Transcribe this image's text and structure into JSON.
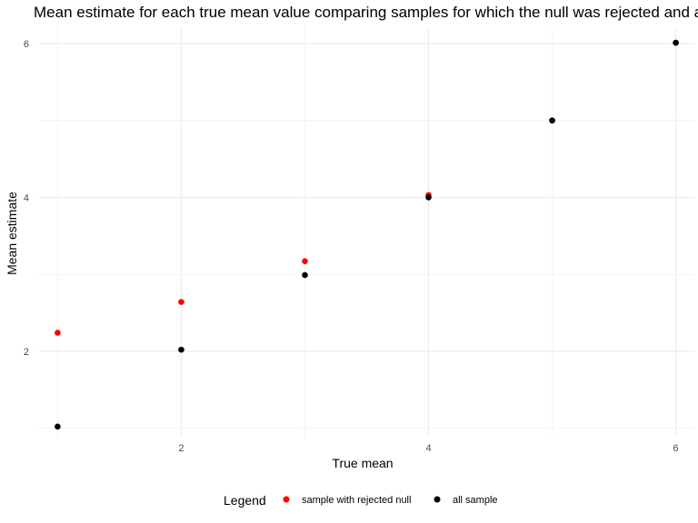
{
  "chart_data": {
    "type": "scatter",
    "title": "Mean estimate for each true mean value comparing samples for which the null was rejected and all samples",
    "xlabel": "True mean",
    "ylabel": "Mean estimate",
    "xlim": [
      0.85,
      6.15
    ],
    "ylim": [
      0.9,
      6.2
    ],
    "x_ticks": [
      2,
      4,
      6
    ],
    "y_ticks": [
      2,
      4,
      6
    ],
    "x_minor": [
      1,
      3,
      5
    ],
    "y_minor": [
      1,
      3,
      5
    ],
    "grid": true,
    "legend": {
      "title": "Legend",
      "position": "bottom"
    },
    "series": [
      {
        "name": "sample with rejected null",
        "color": "#ff0000",
        "points": [
          {
            "x": 1,
            "y": 2.24
          },
          {
            "x": 2,
            "y": 2.64
          },
          {
            "x": 3,
            "y": 3.17
          },
          {
            "x": 4,
            "y": 4.03
          },
          {
            "x": 5,
            "y": 5.0
          },
          {
            "x": 6,
            "y": 6.01
          }
        ]
      },
      {
        "name": "all sample",
        "color": "#000000",
        "points": [
          {
            "x": 1,
            "y": 1.02
          },
          {
            "x": 2,
            "y": 2.02
          },
          {
            "x": 3,
            "y": 2.99
          },
          {
            "x": 4,
            "y": 4.0
          },
          {
            "x": 5,
            "y": 5.0
          },
          {
            "x": 6,
            "y": 6.01
          }
        ]
      }
    ]
  }
}
